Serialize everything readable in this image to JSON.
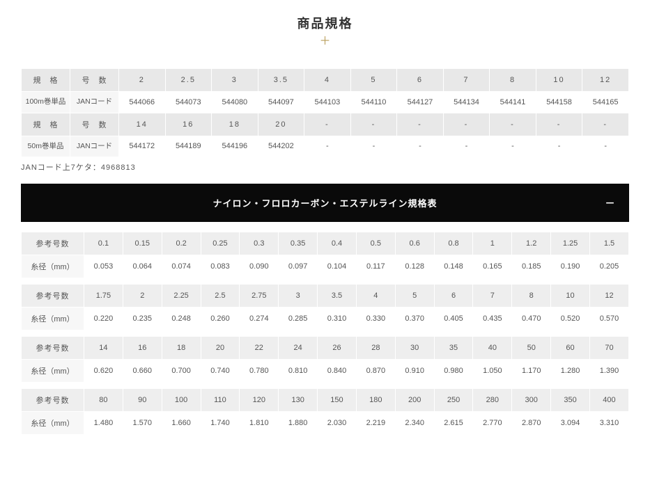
{
  "title": "商品規格",
  "cross": "＋",
  "jan_note": "JANコード上7ケタ：4968813",
  "banner": "ナイロン・フロロカーボン・エステルライン規格表",
  "minus": "−",
  "table1": {
    "headers": {
      "spec": "規　格",
      "num": "号　数"
    },
    "rows": [
      {
        "spec": "100m巻単品",
        "label": "JANコード",
        "cols": [
          "2",
          "2.5",
          "3",
          "3.5",
          "4",
          "5",
          "6",
          "7",
          "8",
          "10",
          "12"
        ],
        "vals": [
          "544066",
          "544073",
          "544080",
          "544097",
          "544103",
          "544110",
          "544127",
          "544134",
          "544141",
          "544158",
          "544165"
        ]
      },
      {
        "spec": "50m巻単品",
        "label": "JANコード",
        "cols": [
          "14",
          "16",
          "18",
          "20",
          "-",
          "-",
          "-",
          "-",
          "-",
          "-",
          "-"
        ],
        "vals": [
          "544172",
          "544189",
          "544196",
          "544202",
          "-",
          "-",
          "-",
          "-",
          "-",
          "-",
          "-"
        ]
      }
    ]
  },
  "spec_rows": [
    {
      "nums": [
        "0.1",
        "0.15",
        "0.2",
        "0.25",
        "0.3",
        "0.35",
        "0.4",
        "0.5",
        "0.6",
        "0.8",
        "1",
        "1.2",
        "1.25",
        "1.5"
      ],
      "dias": [
        "0.053",
        "0.064",
        "0.074",
        "0.083",
        "0.090",
        "0.097",
        "0.104",
        "0.117",
        "0.128",
        "0.148",
        "0.165",
        "0.185",
        "0.190",
        "0.205"
      ]
    },
    {
      "nums": [
        "1.75",
        "2",
        "2.25",
        "2.5",
        "2.75",
        "3",
        "3.5",
        "4",
        "5",
        "6",
        "7",
        "8",
        "10",
        "12"
      ],
      "dias": [
        "0.220",
        "0.235",
        "0.248",
        "0.260",
        "0.274",
        "0.285",
        "0.310",
        "0.330",
        "0.370",
        "0.405",
        "0.435",
        "0.470",
        "0.520",
        "0.570"
      ]
    },
    {
      "nums": [
        "14",
        "16",
        "18",
        "20",
        "22",
        "24",
        "26",
        "28",
        "30",
        "35",
        "40",
        "50",
        "60",
        "70"
      ],
      "dias": [
        "0.620",
        "0.660",
        "0.700",
        "0.740",
        "0.780",
        "0.810",
        "0.840",
        "0.870",
        "0.910",
        "0.980",
        "1.050",
        "1.170",
        "1.280",
        "1.390"
      ]
    },
    {
      "nums": [
        "80",
        "90",
        "100",
        "110",
        "120",
        "130",
        "150",
        "180",
        "200",
        "250",
        "280",
        "300",
        "350",
        "400"
      ],
      "dias": [
        "1.480",
        "1.570",
        "1.660",
        "1.740",
        "1.810",
        "1.880",
        "2.030",
        "2.219",
        "2.340",
        "2.615",
        "2.770",
        "2.870",
        "3.094",
        "3.310"
      ]
    }
  ],
  "spec_labels": {
    "num": "参考号数",
    "dia": "糸径（mm）"
  }
}
